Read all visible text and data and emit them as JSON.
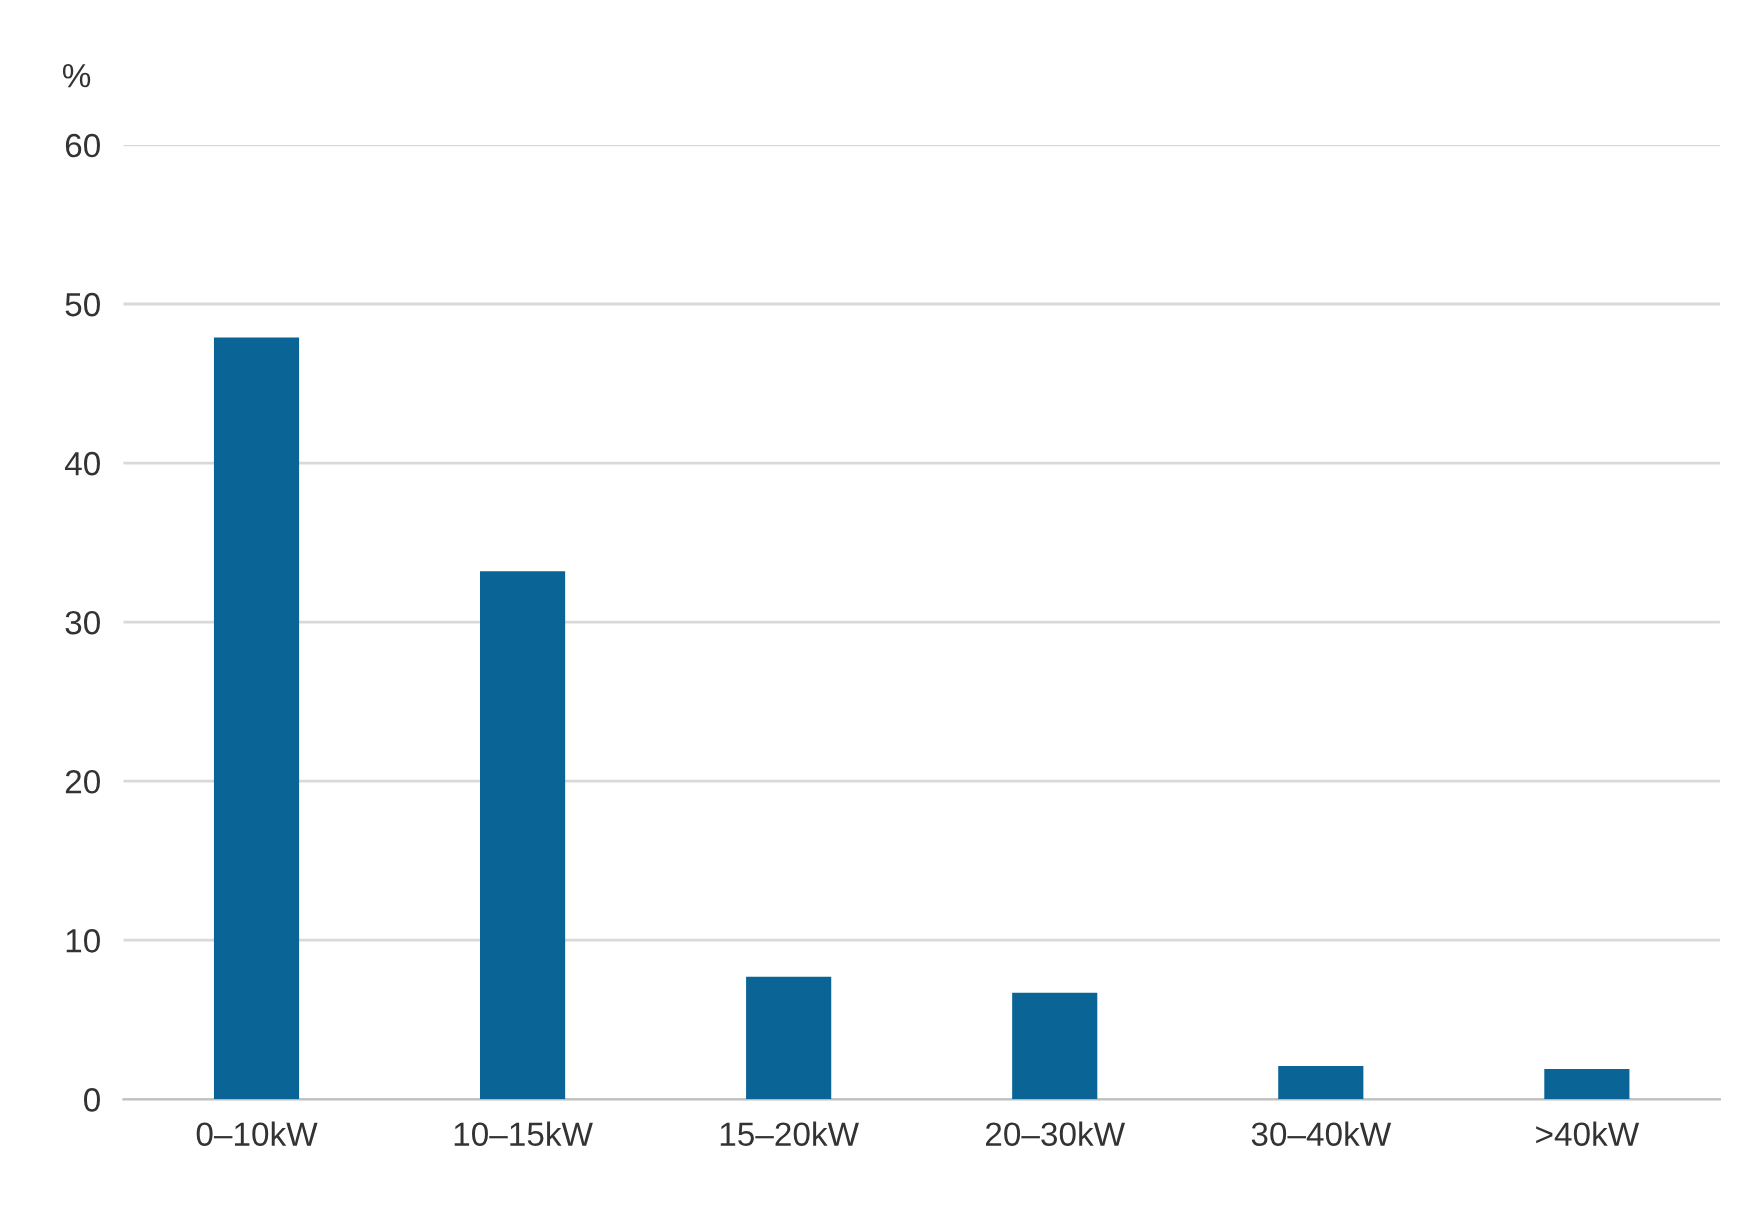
{
  "chart_data": {
    "type": "bar",
    "ylabel": "%",
    "categories": [
      "0–10kW",
      "10–15kW",
      "15–20kW",
      "20–30kW",
      "30–40kW",
      ">40kW"
    ],
    "values": [
      47.9,
      33.2,
      7.7,
      6.7,
      2.1,
      1.9
    ],
    "color": "#0a6496",
    "ylim": [
      0,
      60
    ],
    "yticks": [
      0,
      10,
      20,
      30,
      40,
      50,
      60
    ],
    "grid": "y",
    "legend": false
  }
}
